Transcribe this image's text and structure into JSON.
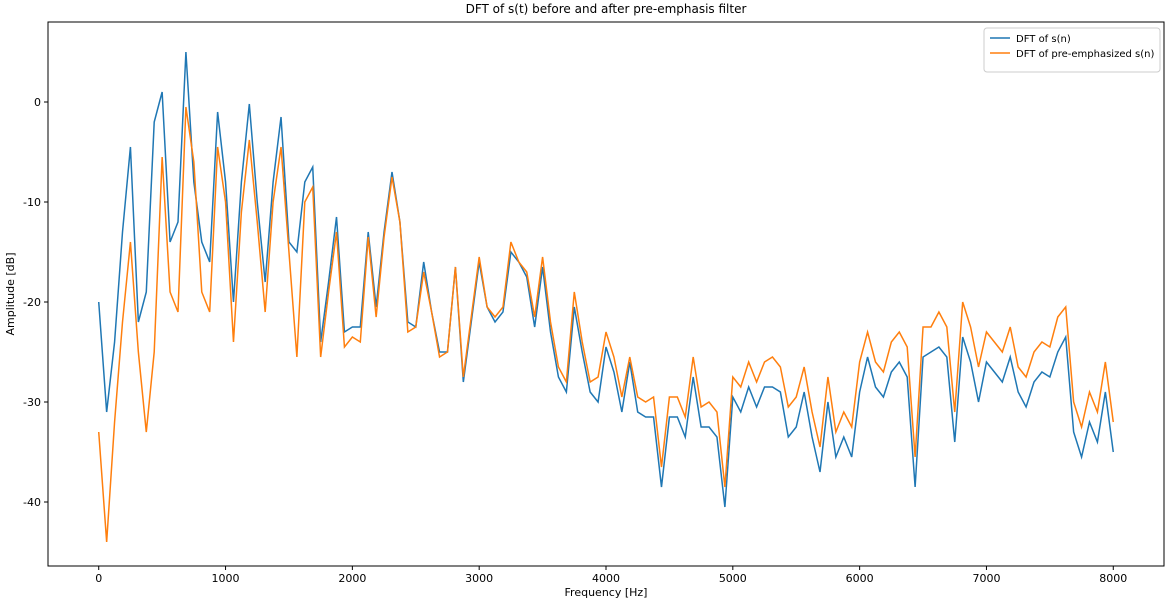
{
  "chart_data": {
    "type": "line",
    "title": "DFT of s(t) before and after pre-emphasis filter",
    "x_label": "Frequency [Hz]",
    "y_label": "Amplitude [dB]",
    "x": [
      0,
      62.5,
      125,
      187.5,
      250,
      312.5,
      375,
      437.5,
      500,
      562.5,
      625,
      687.5,
      750,
      812.5,
      875,
      937.5,
      1000,
      1062.5,
      1125,
      1187.5,
      1250,
      1312.5,
      1375,
      1437.5,
      1500,
      1562.5,
      1625,
      1687.5,
      1750,
      1812.5,
      1875,
      1937.5,
      2000,
      2062.5,
      2125,
      2187.5,
      2250,
      2312.5,
      2375,
      2437.5,
      2500,
      2562.5,
      2625,
      2687.5,
      2750,
      2812.5,
      2875,
      2937.5,
      3000,
      3062.5,
      3125,
      3187.5,
      3250,
      3312.5,
      3375,
      3437.5,
      3500,
      3562.5,
      3625,
      3687.5,
      3750,
      3812.5,
      3875,
      3937.5,
      4000,
      4062.5,
      4125,
      4187.5,
      4250,
      4312.5,
      4375,
      4437.5,
      4500,
      4562.5,
      4625,
      4687.5,
      4750,
      4812.5,
      4875,
      4937.5,
      5000,
      5062.5,
      5125,
      5187.5,
      5250,
      5312.5,
      5375,
      5437.5,
      5500,
      5562.5,
      5625,
      5687.5,
      5750,
      5812.5,
      5875,
      5937.5,
      6000,
      6062.5,
      6125,
      6187.5,
      6250,
      6312.5,
      6375,
      6437.5,
      6500,
      6562.5,
      6625,
      6687.5,
      6750,
      6812.5,
      6875,
      6937.5,
      7000,
      7062.5,
      7125,
      7187.5,
      7250,
      7312.5,
      7375,
      7437.5,
      7500,
      7562.5,
      7625,
      7687.5,
      7750,
      7812.5,
      7875,
      7937.5,
      8000
    ],
    "series": [
      {
        "name": "DFT of s(n)",
        "color": "#1f77b4",
        "values": [
          -20,
          -31,
          -24,
          -13,
          -4.5,
          -22,
          -19,
          -2,
          1,
          -14,
          -12,
          5,
          -8,
          -14,
          -16,
          -1,
          -8,
          -20,
          -8,
          -0.2,
          -10,
          -18,
          -8,
          -1.5,
          -14,
          -15,
          -8,
          -6.5,
          -24,
          -18,
          -11.5,
          -23,
          -22.5,
          -22.5,
          -13,
          -20.5,
          -13,
          -7,
          -12,
          -22,
          -22.5,
          -16,
          -21,
          -25,
          -25,
          -16.5,
          -28,
          -22,
          -16,
          -20.5,
          -22,
          -21,
          -15,
          -16,
          -17.5,
          -22.5,
          -16.5,
          -23,
          -27.5,
          -29,
          -20.5,
          -25,
          -29,
          -30,
          -24.5,
          -27,
          -31,
          -26,
          -31,
          -31.5,
          -31.5,
          -38.5,
          -31.5,
          -31.5,
          -33.5,
          -27.5,
          -32.5,
          -32.5,
          -33.5,
          -40.5,
          -29.5,
          -31,
          -28.5,
          -30.5,
          -28.5,
          -28.5,
          -29,
          -33.5,
          -32.5,
          -29,
          -33.5,
          -37,
          -30,
          -35.5,
          -33.5,
          -35.5,
          -29,
          -25.5,
          -28.5,
          -29.5,
          -27,
          -26,
          -27.5,
          -38.5,
          -25.5,
          -25,
          -24.5,
          -25.5,
          -34,
          -23.5,
          -26,
          -30,
          -26,
          -27,
          -28,
          -25.5,
          -29,
          -30.5,
          -28,
          -27,
          -27.5,
          -25,
          -23.5,
          -33,
          -35.5,
          -32,
          -34,
          -29,
          -35
        ]
      },
      {
        "name": "DFT of pre-emphasized s(n)",
        "color": "#ff7f0e",
        "values": [
          -33,
          -44,
          -32,
          -22,
          -14,
          -25,
          -33,
          -25,
          -5.5,
          -19,
          -21,
          -0.5,
          -6,
          -19,
          -21,
          -4.5,
          -10,
          -24,
          -11,
          -3.8,
          -12,
          -21,
          -10,
          -4.5,
          -15,
          -25.5,
          -10,
          -8.5,
          -25.5,
          -19,
          -13,
          -24.5,
          -23.5,
          -24,
          -13.5,
          -21.5,
          -13.5,
          -7.5,
          -12,
          -23,
          -22.5,
          -17,
          -21,
          -25.5,
          -25,
          -16.5,
          -27.5,
          -21.5,
          -15.5,
          -20.5,
          -21.5,
          -20.5,
          -14,
          -16,
          -17,
          -21.5,
          -15.5,
          -22,
          -26.5,
          -28,
          -19,
          -24,
          -28,
          -27.5,
          -23,
          -25.5,
          -29.5,
          -25.5,
          -29.5,
          -30,
          -29.5,
          -36.5,
          -29.5,
          -29.5,
          -31.5,
          -25.5,
          -30.5,
          -30,
          -31,
          -38.5,
          -27.5,
          -28.5,
          -26,
          -28,
          -26,
          -25.5,
          -26.5,
          -30.5,
          -29.5,
          -26.5,
          -31,
          -34.5,
          -27.5,
          -33,
          -31,
          -32.5,
          -26,
          -23,
          -26,
          -27,
          -24,
          -23,
          -24.5,
          -35.5,
          -22.5,
          -22.5,
          -21,
          -22.5,
          -31,
          -20,
          -22.5,
          -26.5,
          -23,
          -24,
          -25,
          -22.5,
          -26.5,
          -27.5,
          -25,
          -24,
          -24.5,
          -21.5,
          -20.5,
          -30,
          -32.5,
          -29,
          -31,
          -26,
          -32
        ]
      }
    ],
    "xlim": [
      -400,
      8400
    ],
    "ylim": [
      -46.4,
      8
    ],
    "xticks": [
      0,
      1000,
      2000,
      3000,
      4000,
      5000,
      6000,
      7000,
      8000
    ],
    "yticks": [
      -40,
      -30,
      -20,
      -10,
      0
    ],
    "grid": false,
    "legend": "upper right"
  }
}
